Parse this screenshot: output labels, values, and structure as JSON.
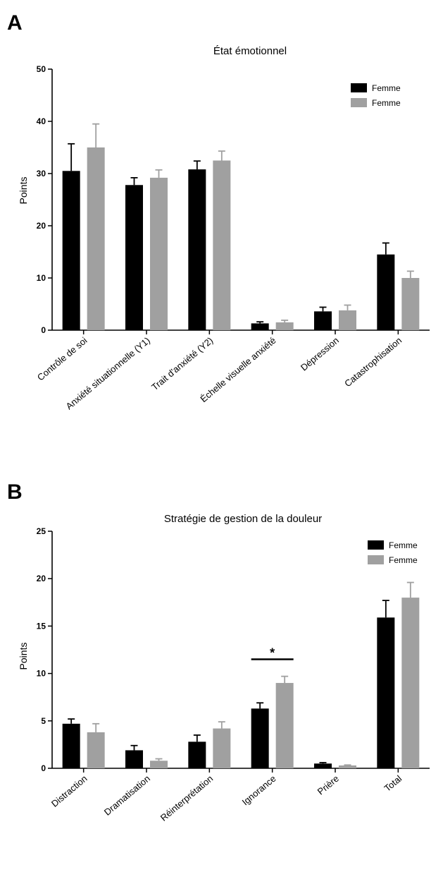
{
  "chart_data": [
    {
      "type": "bar",
      "panel": "A",
      "title": "État émotionnel",
      "ylabel": "Points",
      "xlabel": "",
      "ylim": [
        0,
        50
      ],
      "yticks": [
        0,
        10,
        20,
        30,
        40,
        50
      ],
      "legend_position": "top-right",
      "categories": [
        "Contrôle de soi",
        "Anxiété situationnelle (Y1)",
        "Trait d'anxiété (Y2)",
        "Échelle visuelle anxiété",
        "Dépression",
        "Catastrophisation"
      ],
      "series": [
        {
          "name": "Femme",
          "color": "#000000",
          "values": [
            30.5,
            27.8,
            30.8,
            1.3,
            3.6,
            14.5
          ],
          "errors": [
            5.2,
            1.4,
            1.6,
            0.3,
            0.8,
            2.2
          ]
        },
        {
          "name": "Femme",
          "color": "#a0a0a0",
          "values": [
            35.0,
            29.2,
            32.5,
            1.5,
            3.8,
            10.0
          ],
          "errors": [
            4.5,
            1.5,
            1.8,
            0.4,
            1.0,
            1.3
          ]
        }
      ],
      "annotations": []
    },
    {
      "type": "bar",
      "panel": "B",
      "title": "Stratégie de gestion de la douleur",
      "ylabel": "Points",
      "xlabel": "",
      "ylim": [
        0,
        25
      ],
      "yticks": [
        0,
        5,
        10,
        15,
        20,
        25
      ],
      "legend_position": "top-right",
      "categories": [
        "Distraction",
        "Dramatisation",
        "Réinterprétation",
        "Ignorance",
        "Prière",
        "Total"
      ],
      "series": [
        {
          "name": "Femme",
          "color": "#000000",
          "values": [
            4.7,
            1.9,
            2.8,
            6.3,
            0.5,
            15.9
          ],
          "errors": [
            0.5,
            0.5,
            0.7,
            0.6,
            0.1,
            1.8
          ]
        },
        {
          "name": "Femme",
          "color": "#a0a0a0",
          "values": [
            3.8,
            0.8,
            4.2,
            9.0,
            0.3,
            18.0
          ],
          "errors": [
            0.9,
            0.2,
            0.7,
            0.7,
            0.05,
            1.6
          ]
        }
      ],
      "annotations": [
        {
          "category_index": 3,
          "value": 11.5,
          "text": "*"
        }
      ]
    }
  ]
}
